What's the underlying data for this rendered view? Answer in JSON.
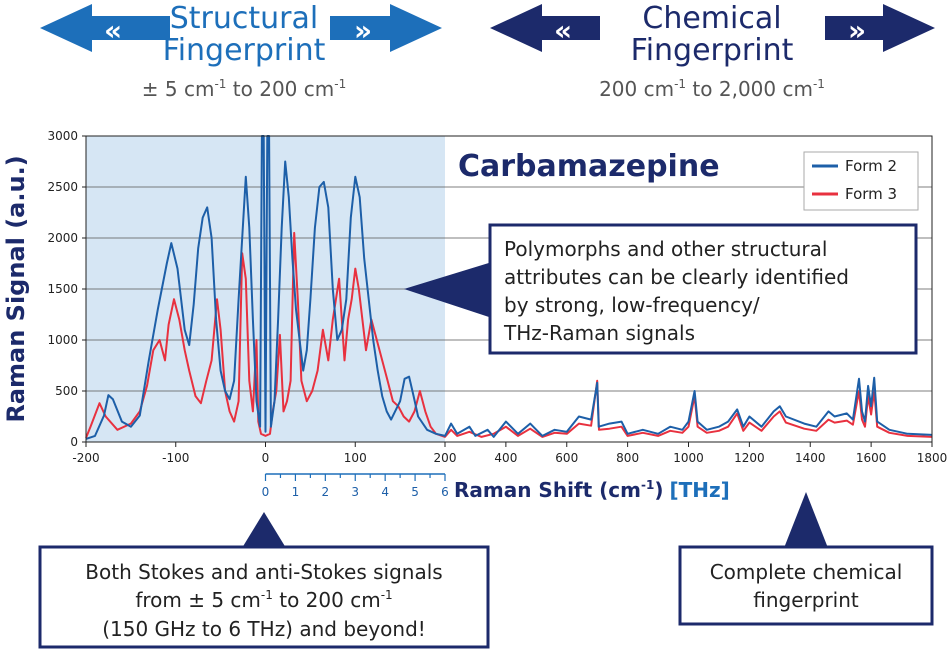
{
  "header": {
    "structural": {
      "title_line1": "Structural",
      "title_line2": "Fingerprint",
      "range_prefix": "± 5 cm",
      "range_mid": " to 200 cm",
      "range_sup": "-1",
      "color": "#1d6fba"
    },
    "chemical": {
      "title_line1": "Chemical",
      "title_line2": "Fingerprint",
      "range_prefix": "200 cm",
      "range_mid": " to 2,000 cm",
      "range_sup": "-1",
      "color": "#1c2a6b"
    }
  },
  "chart_data": {
    "type": "line",
    "title": "Carbamazepine",
    "ylabel": "Raman Signal (a.u.)",
    "xlabel_main": "Raman Shift (cm",
    "xlabel_sup": "-1",
    "xlabel_close": ")",
    "xlabel_secondary": "[THz]",
    "xlim": [
      -200,
      1800
    ],
    "ylim": [
      0,
      3000
    ],
    "x_ticks": [
      -200,
      -100,
      0,
      100,
      200,
      400,
      600,
      800,
      1000,
      1200,
      1400,
      1600,
      1800
    ],
    "x_tick_labels": [
      "-200",
      "-100",
      "0",
      "100",
      "200",
      "400",
      "600",
      "800",
      "1000",
      "1200",
      "1400",
      "1600",
      "1800"
    ],
    "y_ticks": [
      0,
      500,
      1000,
      1500,
      2000,
      2500,
      3000
    ],
    "y_tick_labels": [
      "0",
      "500",
      "1000",
      "1500",
      "2000",
      "2500",
      "3000"
    ],
    "grid": true,
    "legend_position": "top-right",
    "highlight_region": [
      -200,
      200
    ],
    "thz_ticks": [
      "0",
      "1",
      "2",
      "3",
      "4",
      "5",
      "6"
    ],
    "series": [
      {
        "name": "Form 2",
        "color": "#1d5fa8",
        "points": [
          [
            -200,
            30
          ],
          [
            -190,
            60
          ],
          [
            -180,
            260
          ],
          [
            -175,
            460
          ],
          [
            -170,
            420
          ],
          [
            -160,
            200
          ],
          [
            -150,
            150
          ],
          [
            -140,
            260
          ],
          [
            -130,
            800
          ],
          [
            -120,
            1300
          ],
          [
            -110,
            1750
          ],
          [
            -105,
            1950
          ],
          [
            -98,
            1700
          ],
          [
            -90,
            1100
          ],
          [
            -85,
            950
          ],
          [
            -80,
            1350
          ],
          [
            -75,
            1900
          ],
          [
            -70,
            2200
          ],
          [
            -65,
            2300
          ],
          [
            -60,
            2000
          ],
          [
            -55,
            1200
          ],
          [
            -50,
            700
          ],
          [
            -45,
            500
          ],
          [
            -40,
            420
          ],
          [
            -35,
            600
          ],
          [
            -30,
            1400
          ],
          [
            -26,
            2000
          ],
          [
            -22,
            2600
          ],
          [
            -18,
            2100
          ],
          [
            -14,
            1200
          ],
          [
            -10,
            400
          ],
          [
            -6,
            150
          ],
          [
            -4,
            3000
          ],
          [
            -2,
            3000
          ],
          [
            0,
            100
          ],
          [
            2,
            3000
          ],
          [
            4,
            3000
          ],
          [
            6,
            150
          ],
          [
            10,
            400
          ],
          [
            14,
            1200
          ],
          [
            18,
            2100
          ],
          [
            22,
            2750
          ],
          [
            26,
            2400
          ],
          [
            30,
            1800
          ],
          [
            34,
            1300
          ],
          [
            38,
            1000
          ],
          [
            42,
            700
          ],
          [
            46,
            900
          ],
          [
            50,
            1400
          ],
          [
            55,
            2100
          ],
          [
            60,
            2500
          ],
          [
            65,
            2550
          ],
          [
            70,
            2300
          ],
          [
            75,
            1500
          ],
          [
            80,
            1000
          ],
          [
            85,
            1100
          ],
          [
            90,
            1400
          ],
          [
            95,
            2200
          ],
          [
            100,
            2600
          ],
          [
            105,
            2400
          ],
          [
            110,
            1800
          ],
          [
            115,
            1400
          ],
          [
            120,
            1000
          ],
          [
            125,
            700
          ],
          [
            130,
            450
          ],
          [
            135,
            300
          ],
          [
            140,
            220
          ],
          [
            150,
            400
          ],
          [
            155,
            620
          ],
          [
            160,
            640
          ],
          [
            165,
            450
          ],
          [
            170,
            250
          ],
          [
            180,
            120
          ],
          [
            190,
            80
          ],
          [
            200,
            60
          ],
          [
            220,
            180
          ],
          [
            240,
            80
          ],
          [
            280,
            150
          ],
          [
            300,
            60
          ],
          [
            340,
            120
          ],
          [
            360,
            50
          ],
          [
            400,
            200
          ],
          [
            440,
            80
          ],
          [
            480,
            180
          ],
          [
            520,
            60
          ],
          [
            560,
            120
          ],
          [
            600,
            100
          ],
          [
            640,
            250
          ],
          [
            680,
            220
          ],
          [
            700,
            580
          ],
          [
            705,
            150
          ],
          [
            740,
            180
          ],
          [
            780,
            200
          ],
          [
            800,
            80
          ],
          [
            850,
            120
          ],
          [
            900,
            80
          ],
          [
            940,
            150
          ],
          [
            980,
            120
          ],
          [
            1000,
            200
          ],
          [
            1020,
            500
          ],
          [
            1030,
            200
          ],
          [
            1060,
            120
          ],
          [
            1100,
            150
          ],
          [
            1130,
            200
          ],
          [
            1160,
            320
          ],
          [
            1180,
            150
          ],
          [
            1200,
            250
          ],
          [
            1240,
            150
          ],
          [
            1280,
            300
          ],
          [
            1300,
            350
          ],
          [
            1320,
            250
          ],
          [
            1380,
            180
          ],
          [
            1420,
            150
          ],
          [
            1460,
            300
          ],
          [
            1480,
            250
          ],
          [
            1520,
            280
          ],
          [
            1540,
            220
          ],
          [
            1560,
            620
          ],
          [
            1570,
            300
          ],
          [
            1580,
            200
          ],
          [
            1590,
            550
          ],
          [
            1600,
            350
          ],
          [
            1610,
            630
          ],
          [
            1620,
            200
          ],
          [
            1660,
            120
          ],
          [
            1720,
            80
          ],
          [
            1800,
            70
          ]
        ]
      },
      {
        "name": "Form 3",
        "color": "#e8313f",
        "points": [
          [
            -200,
            40
          ],
          [
            -195,
            150
          ],
          [
            -185,
            380
          ],
          [
            -178,
            250
          ],
          [
            -165,
            120
          ],
          [
            -150,
            180
          ],
          [
            -140,
            300
          ],
          [
            -132,
            550
          ],
          [
            -125,
            900
          ],
          [
            -118,
            1000
          ],
          [
            -112,
            800
          ],
          [
            -108,
            1150
          ],
          [
            -102,
            1400
          ],
          [
            -96,
            1200
          ],
          [
            -90,
            900
          ],
          [
            -85,
            700
          ],
          [
            -78,
            450
          ],
          [
            -72,
            380
          ],
          [
            -66,
            600
          ],
          [
            -60,
            800
          ],
          [
            -54,
            1400
          ],
          [
            -50,
            1100
          ],
          [
            -45,
            500
          ],
          [
            -40,
            300
          ],
          [
            -35,
            200
          ],
          [
            -30,
            400
          ],
          [
            -26,
            1850
          ],
          [
            -22,
            1600
          ],
          [
            -18,
            600
          ],
          [
            -14,
            300
          ],
          [
            -10,
            1000
          ],
          [
            -8,
            200
          ],
          [
            -5,
            80
          ],
          [
            0,
            60
          ],
          [
            5,
            80
          ],
          [
            8,
            300
          ],
          [
            12,
            500
          ],
          [
            16,
            1050
          ],
          [
            20,
            300
          ],
          [
            24,
            400
          ],
          [
            28,
            600
          ],
          [
            32,
            2050
          ],
          [
            36,
            1400
          ],
          [
            40,
            600
          ],
          [
            46,
            400
          ],
          [
            52,
            500
          ],
          [
            58,
            700
          ],
          [
            64,
            1100
          ],
          [
            70,
            800
          ],
          [
            75,
            1200
          ],
          [
            82,
            1600
          ],
          [
            88,
            800
          ],
          [
            92,
            1200
          ],
          [
            96,
            1400
          ],
          [
            100,
            1700
          ],
          [
            104,
            1500
          ],
          [
            108,
            1200
          ],
          [
            112,
            900
          ],
          [
            118,
            1200
          ],
          [
            124,
            1000
          ],
          [
            130,
            800
          ],
          [
            136,
            600
          ],
          [
            142,
            400
          ],
          [
            148,
            350
          ],
          [
            154,
            250
          ],
          [
            160,
            200
          ],
          [
            166,
            300
          ],
          [
            172,
            500
          ],
          [
            178,
            300
          ],
          [
            184,
            150
          ],
          [
            190,
            80
          ],
          [
            200,
            50
          ],
          [
            220,
            120
          ],
          [
            240,
            60
          ],
          [
            280,
            100
          ],
          [
            320,
            50
          ],
          [
            360,
            80
          ],
          [
            400,
            150
          ],
          [
            440,
            60
          ],
          [
            480,
            130
          ],
          [
            520,
            50
          ],
          [
            560,
            90
          ],
          [
            600,
            80
          ],
          [
            640,
            180
          ],
          [
            680,
            160
          ],
          [
            700,
            600
          ],
          [
            706,
            120
          ],
          [
            740,
            130
          ],
          [
            780,
            150
          ],
          [
            800,
            60
          ],
          [
            850,
            90
          ],
          [
            900,
            60
          ],
          [
            940,
            110
          ],
          [
            980,
            90
          ],
          [
            1000,
            150
          ],
          [
            1020,
            450
          ],
          [
            1030,
            150
          ],
          [
            1060,
            90
          ],
          [
            1100,
            110
          ],
          [
            1130,
            150
          ],
          [
            1160,
            280
          ],
          [
            1180,
            110
          ],
          [
            1200,
            190
          ],
          [
            1240,
            110
          ],
          [
            1280,
            250
          ],
          [
            1300,
            300
          ],
          [
            1320,
            190
          ],
          [
            1380,
            130
          ],
          [
            1420,
            110
          ],
          [
            1460,
            220
          ],
          [
            1480,
            190
          ],
          [
            1520,
            210
          ],
          [
            1540,
            170
          ],
          [
            1560,
            500
          ],
          [
            1570,
            220
          ],
          [
            1580,
            150
          ],
          [
            1590,
            450
          ],
          [
            1600,
            270
          ],
          [
            1610,
            500
          ],
          [
            1620,
            150
          ],
          [
            1660,
            90
          ],
          [
            1720,
            60
          ],
          [
            1800,
            50
          ]
        ]
      }
    ]
  },
  "callouts": {
    "polymorph": {
      "lines": [
        "Polymorphs and other structural",
        "attributes can be clearly identified",
        "by strong, low-frequency/",
        "THz-Raman signals"
      ]
    },
    "stokes": {
      "line1_a": "Both Stokes and anti-Stokes signals",
      "line2_a": "from ± 5 cm",
      "line2_b": " to 200 cm",
      "line2_sup": "-1",
      "line3": "(150 GHz to 6 THz) and beyond!"
    },
    "chemical": {
      "lines": [
        "Complete chemical",
        "fingerprint"
      ]
    }
  },
  "colors": {
    "navy": "#1c2a6b",
    "blue": "#1d6fba",
    "region_fill": "#d6e6f4"
  }
}
